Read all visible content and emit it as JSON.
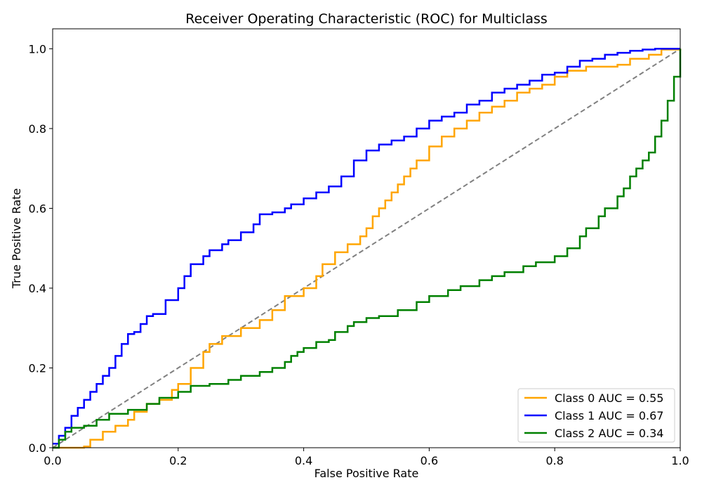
{
  "chart_data": {
    "type": "line",
    "title": "Receiver Operating Characteristic (ROC) for Multiclass",
    "xlabel": "False Positive Rate",
    "ylabel": "True Positive Rate",
    "xlim": [
      0,
      1
    ],
    "ylim": [
      0,
      1.05
    ],
    "x_ticks": [
      "0.0",
      "0.2",
      "0.4",
      "0.6",
      "0.8",
      "1.0"
    ],
    "y_ticks": [
      "0.0",
      "0.2",
      "0.4",
      "0.6",
      "0.8",
      "1.0"
    ],
    "grid": false,
    "legend_position": "lower-right",
    "reference_line": {
      "x": [
        0,
        1
      ],
      "y": [
        0,
        1
      ],
      "color": "#808080",
      "style": "dashed"
    },
    "series": [
      {
        "name": "Class 0 AUC = 0.55",
        "color": "#FFA500",
        "x": [
          0,
          0.02,
          0.05,
          0.06,
          0.08,
          0.1,
          0.12,
          0.13,
          0.15,
          0.17,
          0.19,
          0.2,
          0.22,
          0.24,
          0.25,
          0.27,
          0.3,
          0.33,
          0.35,
          0.37,
          0.4,
          0.42,
          0.43,
          0.45,
          0.47,
          0.49,
          0.5,
          0.51,
          0.52,
          0.53,
          0.54,
          0.55,
          0.56,
          0.57,
          0.58,
          0.6,
          0.62,
          0.64,
          0.66,
          0.68,
          0.7,
          0.72,
          0.74,
          0.76,
          0.78,
          0.8,
          0.82,
          0.85,
          0.9,
          0.92,
          0.95,
          0.97,
          1.0
        ],
        "y": [
          0,
          0,
          0.003,
          0.02,
          0.04,
          0.055,
          0.07,
          0.09,
          0.11,
          0.12,
          0.145,
          0.16,
          0.2,
          0.24,
          0.26,
          0.28,
          0.3,
          0.32,
          0.345,
          0.38,
          0.4,
          0.43,
          0.46,
          0.49,
          0.51,
          0.53,
          0.55,
          0.58,
          0.6,
          0.62,
          0.64,
          0.66,
          0.68,
          0.7,
          0.72,
          0.755,
          0.78,
          0.8,
          0.82,
          0.84,
          0.855,
          0.87,
          0.89,
          0.9,
          0.91,
          0.93,
          0.945,
          0.955,
          0.96,
          0.975,
          0.985,
          0.998,
          1.0
        ]
      },
      {
        "name": "Class 1 AUC = 0.67",
        "color": "#0000FF",
        "x": [
          0,
          0.01,
          0.02,
          0.03,
          0.04,
          0.05,
          0.06,
          0.07,
          0.08,
          0.09,
          0.1,
          0.11,
          0.12,
          0.13,
          0.14,
          0.15,
          0.16,
          0.18,
          0.2,
          0.21,
          0.22,
          0.24,
          0.25,
          0.27,
          0.28,
          0.3,
          0.32,
          0.33,
          0.35,
          0.37,
          0.38,
          0.4,
          0.42,
          0.44,
          0.46,
          0.48,
          0.5,
          0.52,
          0.54,
          0.56,
          0.58,
          0.6,
          0.62,
          0.64,
          0.66,
          0.68,
          0.7,
          0.72,
          0.74,
          0.76,
          0.78,
          0.8,
          0.82,
          0.84,
          0.86,
          0.88,
          0.9,
          0.92,
          0.94,
          0.96,
          1.0
        ],
        "y": [
          0.01,
          0.03,
          0.05,
          0.08,
          0.1,
          0.12,
          0.14,
          0.16,
          0.18,
          0.2,
          0.23,
          0.26,
          0.285,
          0.29,
          0.31,
          0.33,
          0.335,
          0.37,
          0.4,
          0.43,
          0.46,
          0.48,
          0.495,
          0.51,
          0.52,
          0.54,
          0.56,
          0.585,
          0.59,
          0.6,
          0.61,
          0.625,
          0.64,
          0.655,
          0.68,
          0.72,
          0.745,
          0.76,
          0.77,
          0.78,
          0.8,
          0.82,
          0.83,
          0.84,
          0.86,
          0.87,
          0.89,
          0.9,
          0.91,
          0.92,
          0.935,
          0.94,
          0.955,
          0.97,
          0.975,
          0.985,
          0.99,
          0.995,
          0.998,
          1.0,
          1.0
        ]
      },
      {
        "name": "Class 2 AUC = 0.34",
        "color": "#008000",
        "x": [
          0,
          0.01,
          0.02,
          0.03,
          0.05,
          0.07,
          0.09,
          0.12,
          0.15,
          0.17,
          0.2,
          0.22,
          0.25,
          0.28,
          0.3,
          0.33,
          0.35,
          0.37,
          0.38,
          0.39,
          0.4,
          0.42,
          0.44,
          0.45,
          0.47,
          0.48,
          0.5,
          0.52,
          0.55,
          0.58,
          0.6,
          0.63,
          0.65,
          0.68,
          0.7,
          0.72,
          0.75,
          0.77,
          0.8,
          0.82,
          0.84,
          0.85,
          0.87,
          0.88,
          0.9,
          0.91,
          0.92,
          0.93,
          0.94,
          0.95,
          0.96,
          0.97,
          0.98,
          0.99,
          1.0
        ],
        "y": [
          0,
          0.02,
          0.04,
          0.05,
          0.055,
          0.07,
          0.085,
          0.095,
          0.11,
          0.125,
          0.14,
          0.155,
          0.16,
          0.17,
          0.18,
          0.19,
          0.2,
          0.215,
          0.23,
          0.24,
          0.25,
          0.265,
          0.27,
          0.29,
          0.305,
          0.315,
          0.325,
          0.33,
          0.345,
          0.365,
          0.38,
          0.395,
          0.405,
          0.42,
          0.43,
          0.44,
          0.455,
          0.465,
          0.48,
          0.5,
          0.53,
          0.55,
          0.58,
          0.6,
          0.63,
          0.65,
          0.68,
          0.7,
          0.72,
          0.74,
          0.78,
          0.82,
          0.87,
          0.93,
          1.0
        ]
      }
    ]
  }
}
